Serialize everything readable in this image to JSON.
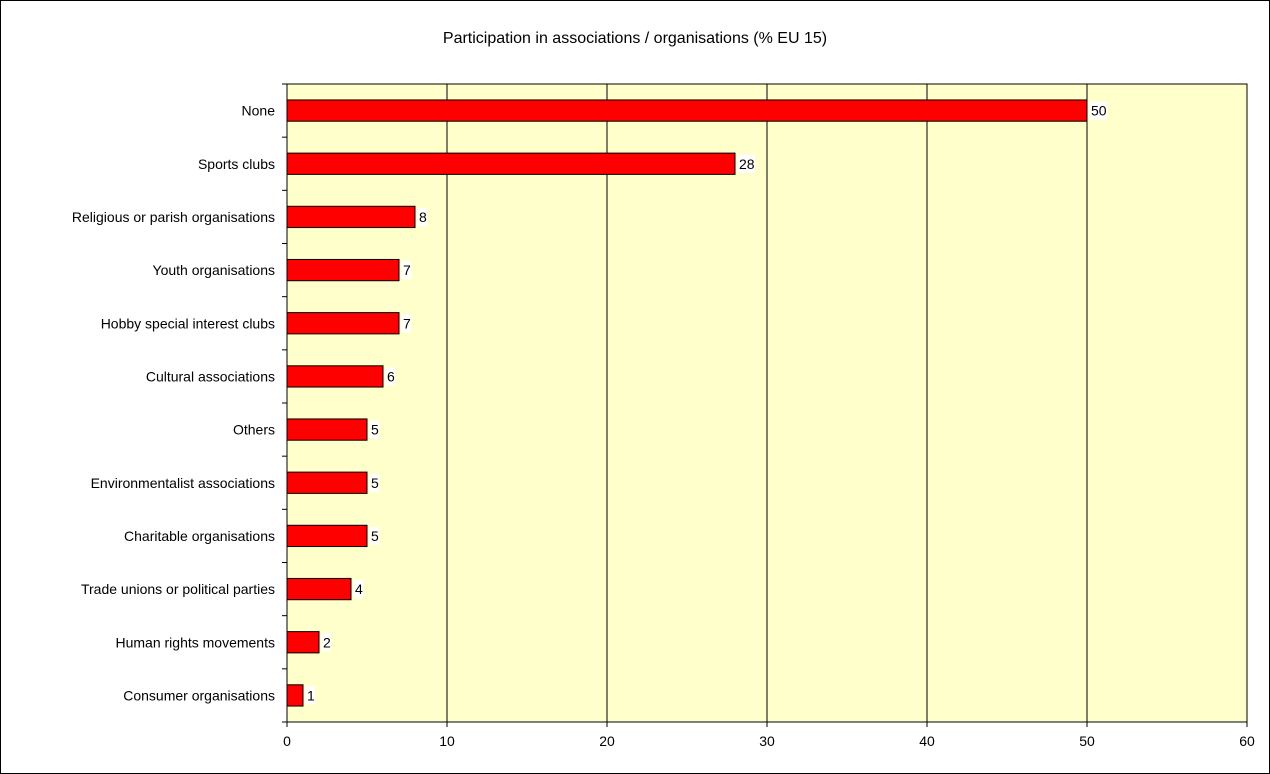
{
  "chart_data": {
    "type": "bar",
    "orientation": "horizontal",
    "title": "Participation in associations / organisations (% EU 15)",
    "xlabel": "",
    "ylabel": "",
    "categories": [
      "None",
      "Sports clubs",
      "Religious or parish organisations",
      "Youth organisations",
      "Hobby special interest clubs",
      "Cultural associations",
      "Others",
      "Environmentalist associations",
      "Charitable organisations",
      "Trade unions or political parties",
      "Human rights movements",
      "Consumer organisations"
    ],
    "values": [
      50,
      28,
      8,
      7,
      7,
      6,
      5,
      5,
      5,
      4,
      2,
      1
    ],
    "xlim": [
      0,
      60
    ],
    "xticks": [
      0,
      10,
      20,
      30,
      40,
      50,
      60
    ],
    "grid": "vertical",
    "legend": "none",
    "colors": {
      "bar_fill": "#ff0000",
      "bar_stroke": "#000000",
      "plot_background": "#ffffcc",
      "gridline": "#000000"
    }
  }
}
